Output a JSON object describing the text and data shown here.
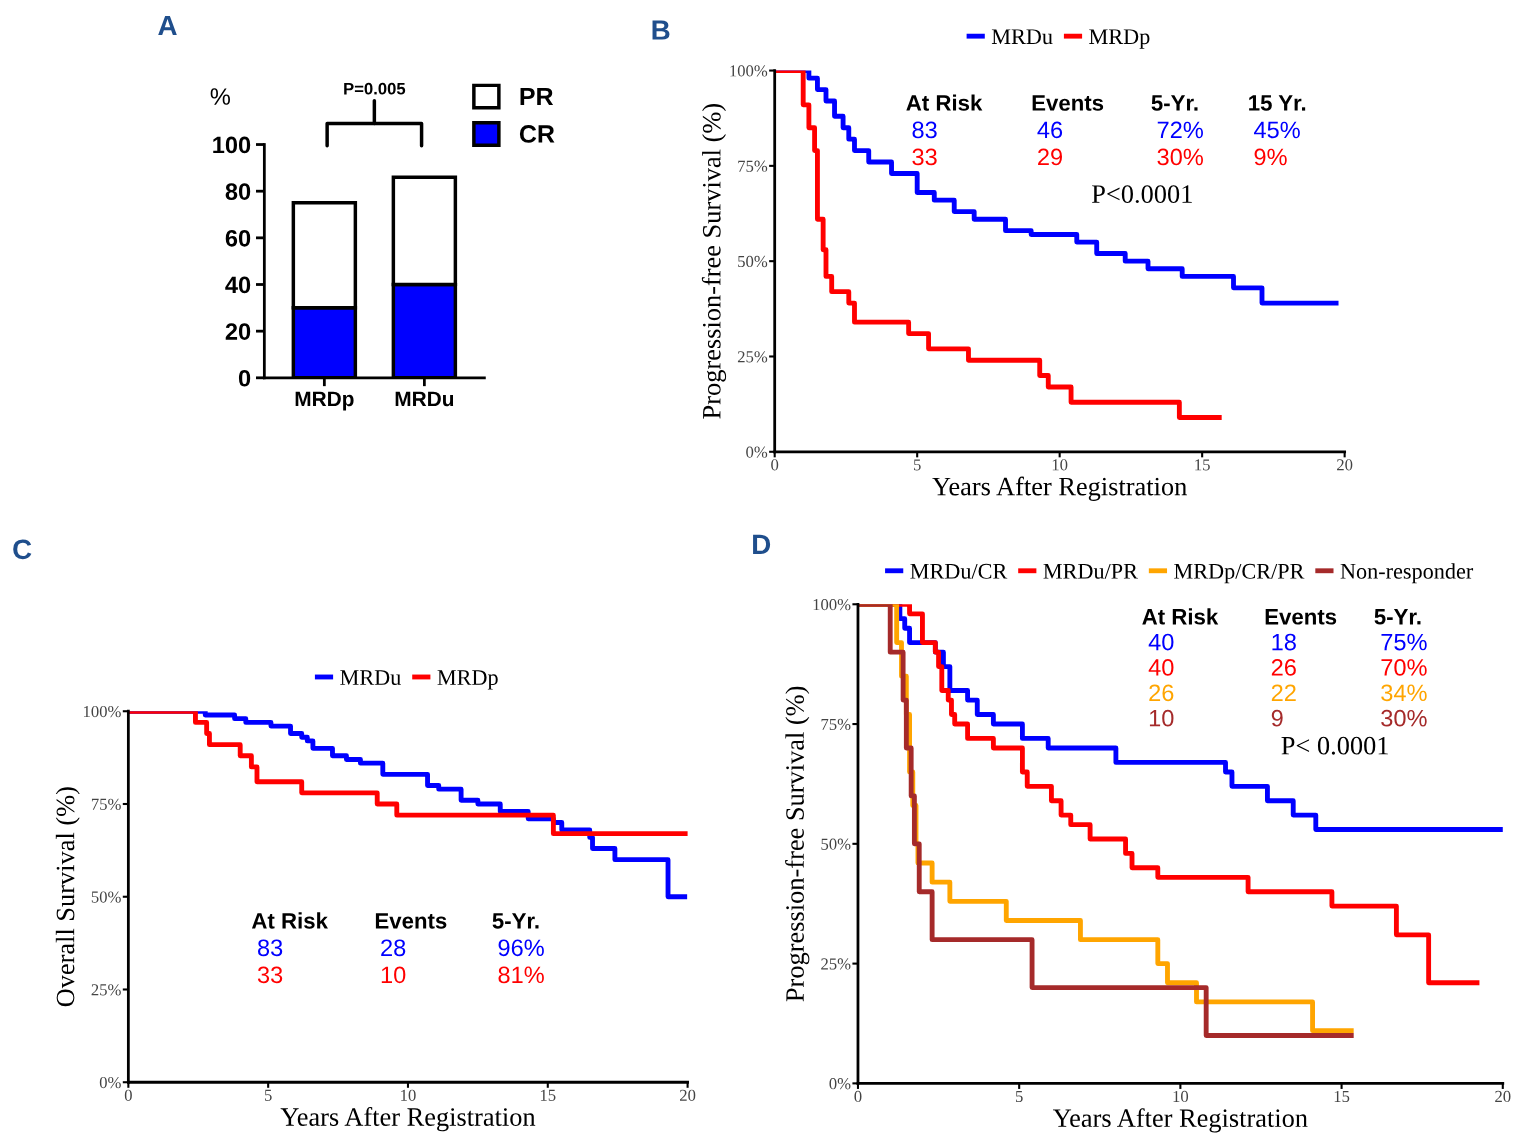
{
  "chart_data": [
    {
      "type": "bar",
      "title": "A",
      "ylabel": "%",
      "categories": [
        "MRDp",
        "MRDu"
      ],
      "stacked": true,
      "legend": "top right",
      "grid": false,
      "ylim": [
        0,
        100
      ],
      "yticks": [
        0,
        20,
        40,
        60,
        80,
        100
      ],
      "series": [
        {
          "name": "CR",
          "color": "#0000ff",
          "values": [
            30,
            40
          ]
        },
        {
          "name": "PR",
          "color": "#ffffff",
          "values": [
            45,
            46
          ]
        }
      ],
      "annotations": [
        "P=0.005"
      ]
    },
    {
      "type": "step",
      "title": "B",
      "xlabel": "Years After Registration",
      "ylabel": "Progression-free Survival (%)",
      "legend": "top",
      "grid": false,
      "xlim": [
        0,
        20
      ],
      "xticks": [
        0,
        5,
        10,
        15,
        20
      ],
      "ylim": [
        0,
        100
      ],
      "yticks": [
        {
          "value": 0,
          "label": "0%"
        },
        {
          "value": 25,
          "label": "25%"
        },
        {
          "value": 50,
          "label": "50%"
        },
        {
          "value": 75,
          "label": "75%"
        },
        {
          "value": 100,
          "label": "100%"
        }
      ],
      "series": [
        {
          "name": "MRDu",
          "color": "#0000ff",
          "x": [
            0,
            1.2,
            1.5,
            1.8,
            2.1,
            2.4,
            2.6,
            2.8,
            3.3,
            4.1,
            5.0,
            5.6,
            6.3,
            7.0,
            8.1,
            9.0,
            10.6,
            11.3,
            12.3,
            13.1,
            14.3,
            16.1,
            17.1,
            19.7
          ],
          "values": [
            100,
            98,
            95,
            92,
            88,
            85,
            82,
            79,
            76,
            73,
            68,
            66,
            63,
            61,
            58,
            57,
            55,
            52,
            50,
            48,
            46,
            43,
            39,
            39
          ]
        },
        {
          "name": "MRDp",
          "color": "#ff0000",
          "x": [
            0,
            1.0,
            1.2,
            1.4,
            1.5,
            1.7,
            1.8,
            2.0,
            2.6,
            2.8,
            4.7,
            5.4,
            6.8,
            9.3,
            9.6,
            10.4,
            14.2,
            15.6
          ],
          "values": [
            100,
            91,
            85,
            79,
            61,
            53,
            46,
            42,
            39,
            34,
            31,
            27,
            24,
            20,
            17,
            13,
            9,
            9
          ]
        }
      ],
      "annotations": [
        "At Risk",
        "Events",
        "5-Yr.",
        "15 Yr.",
        "83",
        "46",
        "72%",
        "45%",
        "33",
        "29",
        "30%",
        "9%",
        "P<0.0001"
      ]
    },
    {
      "type": "step",
      "title": "C",
      "xlabel": "Years After Registration",
      "ylabel": "Overall Survival (%)",
      "legend": "top",
      "grid": false,
      "xlim": [
        0,
        20
      ],
      "xticks": [
        0,
        5,
        10,
        15,
        20
      ],
      "ylim": [
        0,
        100
      ],
      "yticks": [
        {
          "value": 0,
          "label": "0%"
        },
        {
          "value": 25,
          "label": "25%"
        },
        {
          "value": 50,
          "label": "50%"
        },
        {
          "value": 75,
          "label": "75%"
        },
        {
          "value": 100,
          "label": "100%"
        }
      ],
      "series": [
        {
          "name": "MRDu",
          "color": "#0000ff",
          "x": [
            0,
            2.75,
            3.8,
            4.2,
            5.1,
            5.8,
            6.2,
            6.4,
            6.6,
            7.3,
            7.8,
            8.3,
            9.1,
            10.7,
            11.1,
            11.9,
            12.5,
            13.3,
            14.3,
            15.2,
            15.5,
            16.5,
            16.6,
            17.4,
            19.3,
            19.9
          ],
          "values": [
            100,
            99,
            98,
            97,
            96,
            94,
            93,
            92,
            90,
            88,
            87,
            86,
            83,
            80,
            79,
            76,
            75,
            73,
            71,
            70,
            68,
            66,
            63,
            60,
            50,
            50
          ]
        },
        {
          "name": "MRDp",
          "color": "#ff0000",
          "x": [
            0,
            2.4,
            2.8,
            2.9,
            4.0,
            4.4,
            4.6,
            6.2,
            8.9,
            9.6,
            15.2,
            20
          ],
          "values": [
            100,
            97,
            94,
            91,
            88,
            85,
            81,
            78,
            75,
            72,
            67,
            67
          ]
        }
      ],
      "annotations": [
        "At Risk",
        "Events",
        "5-Yr.",
        "83",
        "28",
        "96%",
        "33",
        "10",
        "81%"
      ]
    },
    {
      "type": "step",
      "title": "D",
      "xlabel": "Years After Registration",
      "ylabel": "Progression-free Survival (%)",
      "legend": "top",
      "grid": false,
      "xlim": [
        0,
        20
      ],
      "xticks": [
        0,
        5,
        10,
        15,
        20
      ],
      "ylim": [
        0,
        100
      ],
      "yticks": [
        {
          "value": 0,
          "label": "0%"
        },
        {
          "value": 25,
          "label": "25%"
        },
        {
          "value": 50,
          "label": "50%"
        },
        {
          "value": 75,
          "label": "75%"
        },
        {
          "value": 100,
          "label": "100%"
        }
      ],
      "series": [
        {
          "name": "MRDu/CR",
          "color": "#0000ff",
          "x": [
            0,
            1.3,
            1.45,
            1.6,
            2.4,
            2.65,
            2.85,
            3.4,
            3.7,
            4.2,
            5.1,
            5.9,
            8.0,
            11.4,
            11.6,
            12.7,
            13.5,
            14.2,
            20
          ],
          "values": [
            100,
            97,
            95,
            92,
            90,
            87,
            82,
            80,
            77,
            75,
            72,
            70,
            67,
            65,
            62,
            59,
            56,
            53,
            53
          ]
        },
        {
          "name": "MRDu/PR",
          "color": "#ff0000",
          "x": [
            0,
            1.6,
            2.0,
            2.4,
            2.5,
            2.6,
            2.8,
            2.9,
            3.0,
            3.4,
            4.2,
            5.1,
            5.25,
            6.0,
            6.3,
            6.6,
            7.2,
            8.3,
            8.5,
            9.3,
            12.1,
            14.7,
            16.7,
            17.7,
            19.2
          ],
          "values": [
            100,
            98,
            92,
            90,
            87,
            82,
            80,
            77,
            75,
            72,
            70,
            65,
            62,
            59,
            56,
            54,
            51,
            48,
            45,
            43,
            40,
            37,
            31,
            21,
            21
          ]
        },
        {
          "name": "MRDp/CR/PR",
          "color": "#ffa500",
          "x": [
            0,
            1.2,
            1.35,
            1.5,
            1.6,
            1.7,
            1.8,
            1.86,
            2.3,
            2.85,
            4.6,
            6.9,
            9.3,
            9.6,
            10.5,
            14.1,
            15.3
          ],
          "values": [
            100,
            92,
            85,
            77,
            65,
            58,
            50,
            46,
            42,
            38,
            34,
            30,
            25,
            21,
            17,
            11,
            11
          ]
        },
        {
          "name": "Non-responder",
          "color": "#a52a2a",
          "x": [
            0,
            1.0,
            1.4,
            1.5,
            1.65,
            1.75,
            1.9,
            2.3,
            5.4,
            10.8,
            15.3
          ],
          "values": [
            100,
            90,
            80,
            70,
            60,
            50,
            40,
            30,
            20,
            10,
            10
          ]
        }
      ],
      "annotations": [
        "At Risk",
        "Events",
        "5-Yr.",
        "40",
        "18",
        "75%",
        "40",
        "26",
        "70%",
        "26",
        "22",
        "34%",
        "10",
        "9",
        "30%",
        "P< 0.0001"
      ]
    }
  ]
}
